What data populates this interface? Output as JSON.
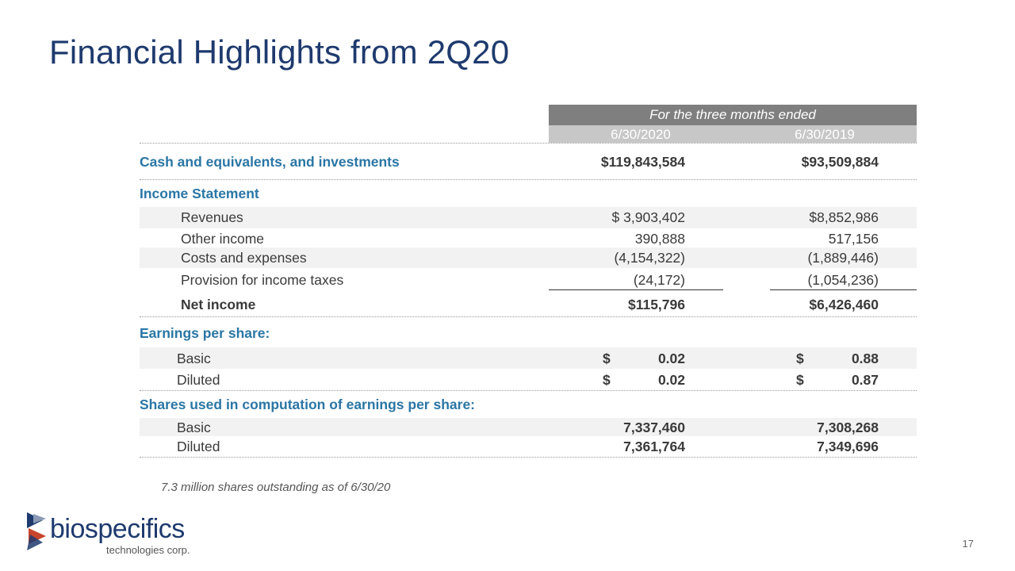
{
  "title": "Financial Highlights from 2Q20",
  "table": {
    "period_header": "For the three months ended",
    "col1_header": "6/30/2020",
    "col2_header": "6/30/2019",
    "cash": {
      "label": "Cash and equivalents, and investments",
      "v1": "$119,843,584",
      "v2": "$93,509,884"
    },
    "income_statement_label": "Income Statement",
    "revenues": {
      "label": "Revenues",
      "v1": "$ 3,903,402",
      "v2": "$8,852,986"
    },
    "other_income": {
      "label": "Other income",
      "v1": "390,888",
      "v2": "517,156"
    },
    "costs": {
      "label": "Costs and expenses",
      "v1": "(4,154,322)",
      "v2": "(1,889,446)"
    },
    "taxes": {
      "label": "Provision for income taxes",
      "v1": "(24,172)",
      "v2": "(1,054,236)"
    },
    "net_income": {
      "label": "Net income",
      "v1": "$115,796",
      "v2": "$6,426,460"
    },
    "eps_label": "Earnings per share:",
    "eps_basic": {
      "label": "Basic",
      "sign": "$",
      "v1": "0.02",
      "v2": "0.88"
    },
    "eps_diluted": {
      "label": "Diluted",
      "sign": "$",
      "v1": "0.02",
      "v2": "0.87"
    },
    "shares_label": "Shares used in computation of earnings per share:",
    "shares_basic": {
      "label": "Basic",
      "v1": "7,337,460",
      "v2": "7,308,268"
    },
    "shares_diluted": {
      "label": "Diluted",
      "v1": "7,361,764",
      "v2": "7,349,696"
    }
  },
  "footnote": "7.3 million shares outstanding as of 6/30/20",
  "page_number": "17",
  "logo": {
    "wordmark": "biospecifics",
    "tagline": "technologies corp."
  },
  "colors": {
    "title": "#1e3a6e",
    "section": "#2a76a5",
    "header_dark": "#7f7f7f",
    "header_light": "#c7c7c7",
    "row_shade": "#f2f2f2"
  }
}
